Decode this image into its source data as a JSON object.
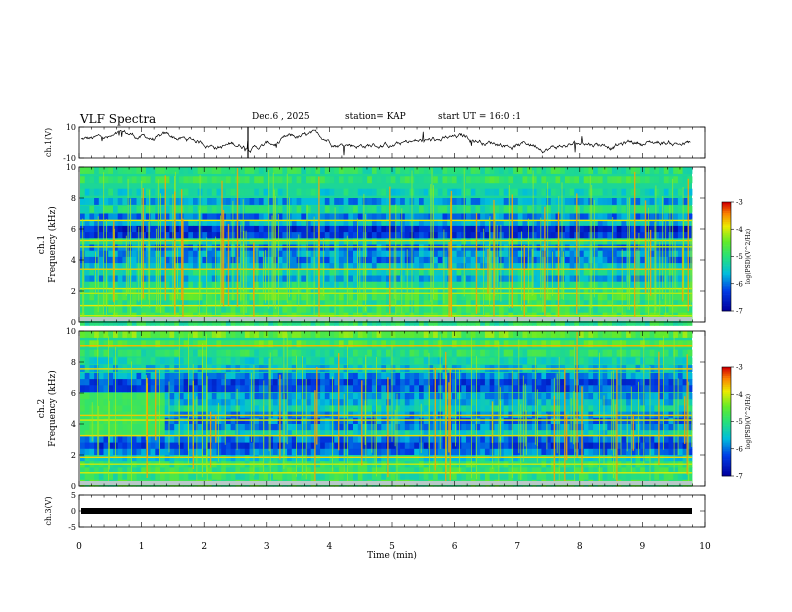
{
  "header": {
    "title": "VLF Spectra",
    "date": "Dec.6 , 2025",
    "station": "station= KAP",
    "start": "start UT = 16:0 :1"
  },
  "chart_data": [
    {
      "type": "line",
      "name": "ch1-waveform",
      "ylabel": "ch.1(V)",
      "ylim": [
        -10,
        10
      ],
      "yticks": [
        "10",
        "-10"
      ],
      "xlim": [
        0,
        10
      ]
    },
    {
      "type": "heatmap",
      "name": "ch1-spectrogram",
      "ylabel_top": "ch.1",
      "ylabel": "Frequency (kHz)",
      "ylim": [
        0,
        10
      ],
      "yticks": [
        "0",
        "2",
        "4",
        "6",
        "8",
        "10"
      ],
      "xlim": [
        0,
        10
      ],
      "colorbar": {
        "label": "log(PSD)(V^2/Hz)",
        "range": [
          -7,
          -3
        ],
        "ticks": [
          "-3",
          "-4",
          "-5",
          "-6",
          "-7"
        ]
      }
    },
    {
      "type": "heatmap",
      "name": "ch2-spectrogram",
      "ylabel_top": "ch.2",
      "ylabel": "Frequency (kHz)",
      "ylim": [
        0,
        10
      ],
      "yticks": [
        "0",
        "2",
        "4",
        "6",
        "8",
        "10"
      ],
      "xlim": [
        0,
        10
      ],
      "colorbar": {
        "label": "log(PSD)(V^2/Hz)",
        "range": [
          -7,
          -3
        ],
        "ticks": [
          "-3",
          "-4",
          "-5",
          "-6",
          "-7"
        ]
      }
    },
    {
      "type": "line",
      "name": "ch3-waveform",
      "ylabel": "ch.3(V)",
      "ylim": [
        -5,
        5
      ],
      "yticks": [
        "5",
        "0",
        "-5"
      ],
      "xlim": [
        0,
        10
      ],
      "xlabel": "Time (min)",
      "xticks": [
        "0",
        "1",
        "2",
        "3",
        "4",
        "5",
        "6",
        "7",
        "8",
        "9",
        "10"
      ]
    }
  ],
  "colors": {
    "low": "#0000b0",
    "mid": "#00c8c8",
    "green": "#40e040",
    "yellow": "#e8e800",
    "red": "#d00000"
  }
}
